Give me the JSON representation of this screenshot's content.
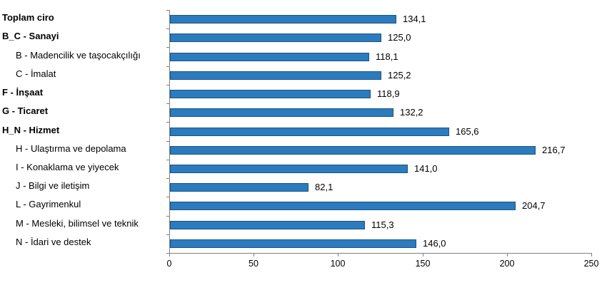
{
  "chart_data": {
    "type": "bar",
    "orientation": "horizontal",
    "title": "",
    "xlabel": "",
    "ylabel": "",
    "xlim": [
      0,
      250
    ],
    "xticks": [
      0,
      50,
      100,
      150,
      200,
      250
    ],
    "xtick_labels": [
      "0",
      "50",
      "100",
      "150",
      "200",
      "250"
    ],
    "grid": false,
    "legend": null,
    "decimal_separator": ",",
    "categories": [
      {
        "label": "Toplam ciro",
        "bold": true,
        "indent": false
      },
      {
        "label": "B_C - Sanayi",
        "bold": true,
        "indent": false
      },
      {
        "label": "B - Madencilik ve taşocakçılığı",
        "bold": false,
        "indent": true
      },
      {
        "label": "C - İmalat",
        "bold": false,
        "indent": true
      },
      {
        "label": "F - İnşaat",
        "bold": true,
        "indent": false
      },
      {
        "label": "G - Ticaret",
        "bold": true,
        "indent": false
      },
      {
        "label": "H_N - Hizmet",
        "bold": true,
        "indent": false
      },
      {
        "label": "H - Ulaştırma ve depolama",
        "bold": false,
        "indent": true
      },
      {
        "label": "I - Konaklama ve yiyecek",
        "bold": false,
        "indent": true
      },
      {
        "label": "J - Bilgi ve iletişim",
        "bold": false,
        "indent": true
      },
      {
        "label": "L - Gayrimenkul",
        "bold": false,
        "indent": true
      },
      {
        "label": "M - Mesleki, bilimsel ve teknik",
        "bold": false,
        "indent": true
      },
      {
        "label": "N - İdari ve destek",
        "bold": false,
        "indent": true
      }
    ],
    "values": [
      134.1,
      125.0,
      118.1,
      125.2,
      118.9,
      132.2,
      165.6,
      216.7,
      141.0,
      82.1,
      204.7,
      115.3,
      146.0
    ],
    "value_labels": [
      "134,1",
      "125,0",
      "118,1",
      "125,2",
      "118,9",
      "132,2",
      "165,6",
      "216,7",
      "141,0",
      "82,1",
      "204,7",
      "115,3",
      "146,0"
    ],
    "colors": {
      "bar_fill": "#2b7bbe",
      "bar_border": "#1a5480",
      "axis": "#808080",
      "text": "#000000",
      "background": "#ffffff"
    }
  }
}
